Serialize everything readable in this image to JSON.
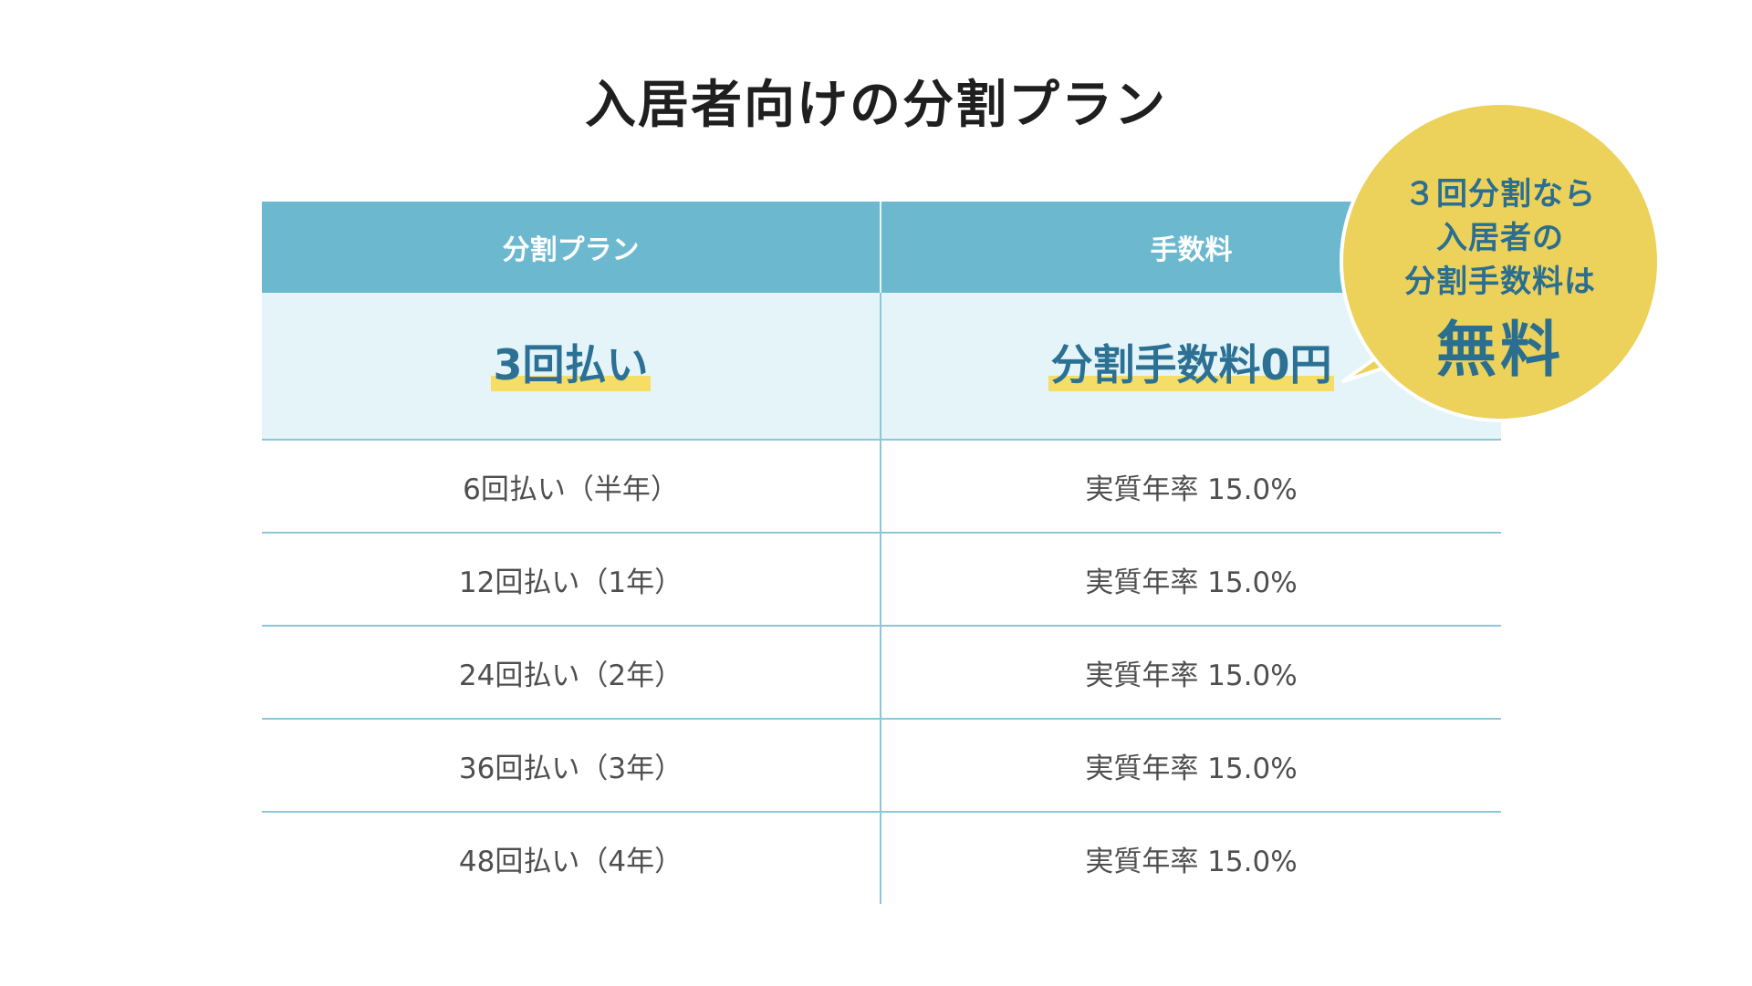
{
  "title": "入居者向けの分割プラン",
  "table": {
    "headers": [
      "分割プラン",
      "手数料"
    ],
    "featured": {
      "plan": "3回払い",
      "fee": "分割手数料0円"
    },
    "rows": [
      {
        "plan": "6回払い（半年）",
        "fee": "実質年率 15.0%"
      },
      {
        "plan": "12回払い（1年）",
        "fee": "実質年率 15.0%"
      },
      {
        "plan": "24回払い（2年）",
        "fee": "実質年率 15.0%"
      },
      {
        "plan": "36回払い（3年）",
        "fee": "実質年率 15.0%"
      },
      {
        "plan": "48回払い（4年）",
        "fee": "実質年率 15.0%"
      }
    ]
  },
  "callout": {
    "lines": [
      "３回分割なら",
      "入居者の",
      "分割手数料は"
    ],
    "emphasis": "無料"
  },
  "colors": {
    "header_bg": "#6cb9cf",
    "featured_bg": "#e4f4f8",
    "accent_text": "#2c7194",
    "highlight": "#f5dd66",
    "bubble_bg": "#ecd15b",
    "border": "#8cc7d8"
  }
}
